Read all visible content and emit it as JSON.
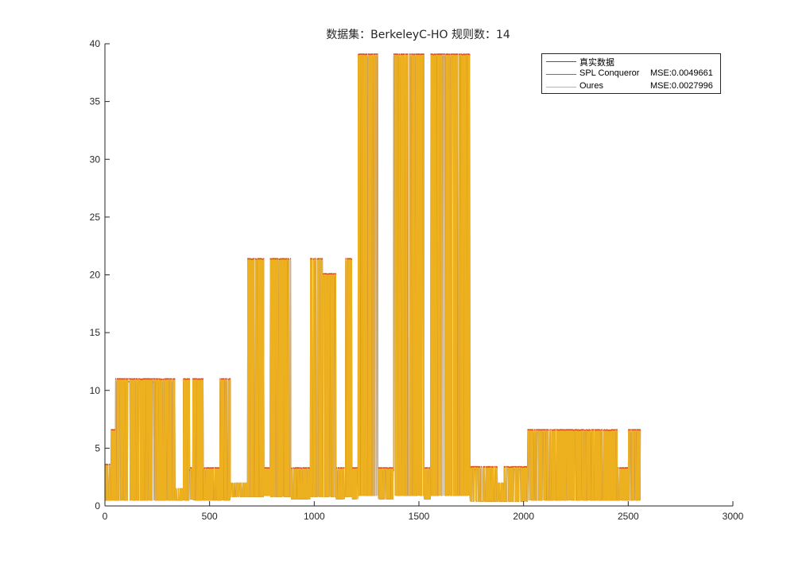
{
  "chart_data": {
    "type": "line",
    "title": "数据集：BerkeleyC-HO  规则数：14",
    "xlabel": "",
    "ylabel": "",
    "xlim": [
      0,
      3000
    ],
    "ylim": [
      0,
      40
    ],
    "x_ticks": [
      "0",
      "500",
      "1000",
      "1500",
      "2000",
      "2500",
      "3000"
    ],
    "y_ticks": [
      "0",
      "5",
      "10",
      "15",
      "20",
      "25",
      "30",
      "35",
      "40"
    ],
    "grid": false,
    "legend_position": "top-right",
    "n_points": 2560,
    "series": [
      {
        "name": "真实数据",
        "mse_label": "",
        "color": "#0072BD"
      },
      {
        "name": "SPL Conqueror",
        "mse_label": "MSE:0.0049661",
        "color": "#D95319"
      },
      {
        "name": "Oures",
        "mse_label": "MSE:0.0027996",
        "color": "#EDB120"
      }
    ],
    "segments": [
      {
        "x": [
          0,
          30
        ],
        "low": 0.5,
        "high": 3.5
      },
      {
        "x": [
          30,
          50
        ],
        "low": 0.5,
        "high": 6.5
      },
      {
        "x": [
          50,
          335
        ],
        "low": 0.5,
        "high": 10.9
      },
      {
        "x": [
          335,
          375
        ],
        "low": 0.5,
        "high": 1.5
      },
      {
        "x": [
          375,
          405
        ],
        "low": 0.5,
        "high": 10.9
      },
      {
        "x": [
          405,
          420
        ],
        "low": 0.6,
        "high": 3.2
      },
      {
        "x": [
          420,
          470
        ],
        "low": 0.5,
        "high": 10.9
      },
      {
        "x": [
          470,
          550
        ],
        "low": 0.5,
        "high": 3.2
      },
      {
        "x": [
          550,
          600
        ],
        "low": 0.5,
        "high": 10.9
      },
      {
        "x": [
          600,
          680
        ],
        "low": 0.8,
        "high": 2.0
      },
      {
        "x": [
          680,
          760
        ],
        "low": 0.8,
        "high": 21.3
      },
      {
        "x": [
          760,
          790
        ],
        "low": 0.9,
        "high": 3.2
      },
      {
        "x": [
          790,
          890
        ],
        "low": 0.8,
        "high": 21.3
      },
      {
        "x": [
          890,
          980
        ],
        "low": 0.6,
        "high": 3.2
      },
      {
        "x": [
          980,
          1040
        ],
        "low": 0.8,
        "high": 21.3
      },
      {
        "x": [
          1040,
          1105
        ],
        "low": 0.8,
        "high": 20.0
      },
      {
        "x": [
          1105,
          1145
        ],
        "low": 0.6,
        "high": 3.2
      },
      {
        "x": [
          1145,
          1180
        ],
        "low": 0.8,
        "high": 21.3
      },
      {
        "x": [
          1180,
          1210
        ],
        "low": 0.6,
        "high": 3.2
      },
      {
        "x": [
          1210,
          1305
        ],
        "low": 0.9,
        "high": 39.0
      },
      {
        "x": [
          1305,
          1380
        ],
        "low": 0.6,
        "high": 3.2
      },
      {
        "x": [
          1380,
          1525
        ],
        "low": 0.9,
        "high": 39.0
      },
      {
        "x": [
          1525,
          1555
        ],
        "low": 0.6,
        "high": 3.2
      },
      {
        "x": [
          1555,
          1745
        ],
        "low": 0.9,
        "high": 39.0
      },
      {
        "x": [
          1745,
          1875
        ],
        "low": 0.4,
        "high": 3.3
      },
      {
        "x": [
          1875,
          1905
        ],
        "low": 0.4,
        "high": 2.0
      },
      {
        "x": [
          1905,
          2020
        ],
        "low": 0.4,
        "high": 3.3
      },
      {
        "x": [
          2020,
          2450
        ],
        "low": 0.5,
        "high": 6.5
      },
      {
        "x": [
          2450,
          2500
        ],
        "low": 0.5,
        "high": 3.2
      },
      {
        "x": [
          2500,
          2560
        ],
        "low": 0.5,
        "high": 6.5
      }
    ]
  }
}
